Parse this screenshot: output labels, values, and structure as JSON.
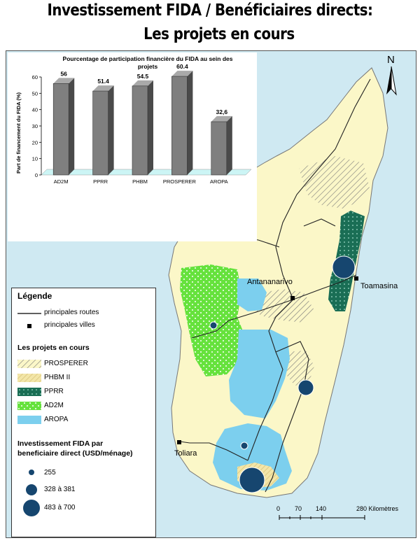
{
  "title": {
    "line1": "Investissement FIDA / Benéficiaires directs:",
    "line2": "Les projets en cours"
  },
  "colors": {
    "sea": "#cfe9f2",
    "land": "#fbf7c8",
    "ppr": "#1a6e55",
    "ad2m": "#66e23d",
    "aropa": "#7ccfee",
    "phbm": "#e6d79a",
    "bubble": "#16466f",
    "bar": "#7f7f7f"
  },
  "chart_data": {
    "type": "bar",
    "title": "Pourcentage de participation financière du FIDA au sein des projets",
    "ylabel": "Part de financement du FIDA (%)",
    "categories": [
      "AD2M",
      "PPRR",
      "PHBM",
      "PROSPERER",
      "AROPA"
    ],
    "values": [
      56,
      51.4,
      54.5,
      60.4,
      32.6
    ],
    "value_labels": [
      "56",
      "51.4",
      "54.5",
      "60.4",
      "32,6"
    ],
    "yticks": [
      "0",
      "10",
      "20",
      "30",
      "40",
      "50",
      "60"
    ],
    "ylim": [
      0,
      60
    ],
    "grid": false
  },
  "map": {
    "cities": [
      "Antananarivo",
      "Toamasina",
      "Toliara"
    ],
    "north_label": "N",
    "scale": {
      "ticks": [
        "0",
        "70",
        "140",
        "280 Kilomètres"
      ]
    }
  },
  "legend": {
    "title": "Légende",
    "items_roads": "principales routes",
    "items_cities": "principales villes",
    "projects_title": "Les projets en cours",
    "projects": [
      "PROSPERER",
      "PHBM II",
      "PPRR",
      "AD2M",
      "AROPA"
    ],
    "investment_title_line1": "Investissement FIDA par",
    "investment_title_line2": "beneficiaire direct (USD/ménage)",
    "investment_classes": [
      "255",
      "328 à 381",
      "483 à 700"
    ]
  }
}
